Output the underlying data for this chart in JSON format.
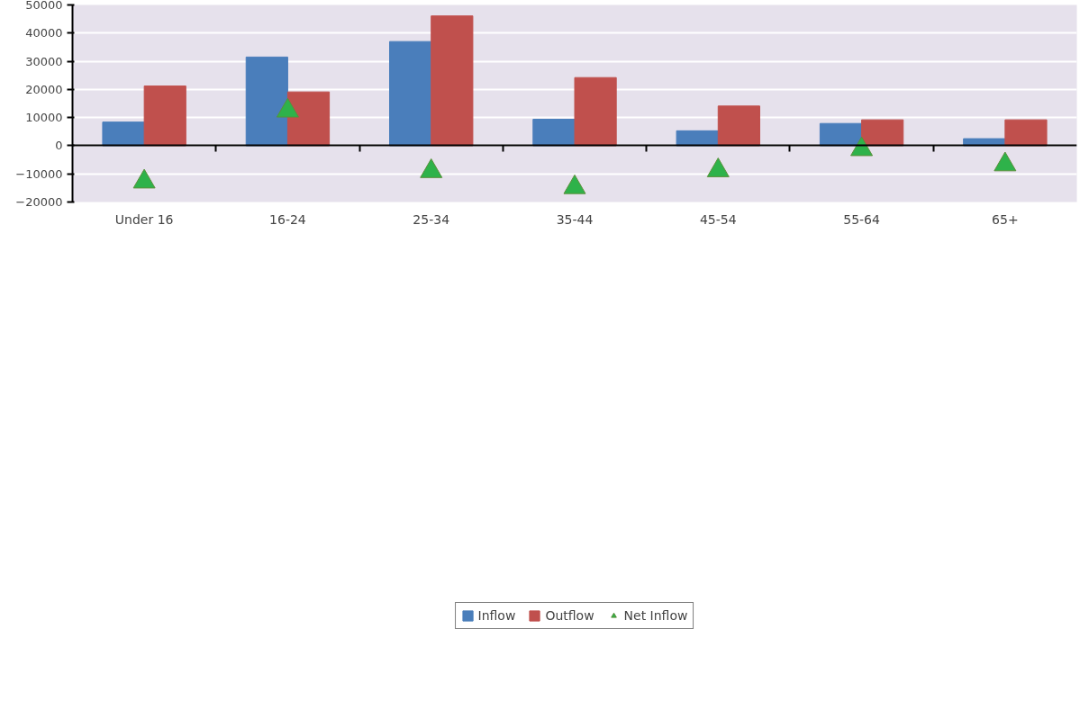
{
  "chart_data": {
    "type": "bar",
    "categories": [
      "Under 16",
      "16-24",
      "25-34",
      "35-44",
      "45-54",
      "55-64",
      "65+"
    ],
    "series": [
      {
        "name": "Inflow",
        "color": "#4a7ebb",
        "values": [
          8400,
          31500,
          37000,
          9400,
          5300,
          7900,
          2500
        ]
      },
      {
        "name": "Outflow",
        "color": "#c0504d",
        "values": [
          21200,
          19100,
          46100,
          24200,
          14100,
          9200,
          9200
        ]
      },
      {
        "name": "Net Inflow",
        "type": "scatter",
        "marker": "triangle",
        "color": "#2eb24a",
        "values": [
          -12800,
          12400,
          -9100,
          -14800,
          -8800,
          -1300,
          -6700
        ]
      }
    ],
    "ylim": [
      -20000,
      50000
    ],
    "yticks": [
      -20000,
      -10000,
      0,
      10000,
      20000,
      30000,
      40000,
      50000
    ],
    "grid": "y",
    "legend": "bottom"
  }
}
